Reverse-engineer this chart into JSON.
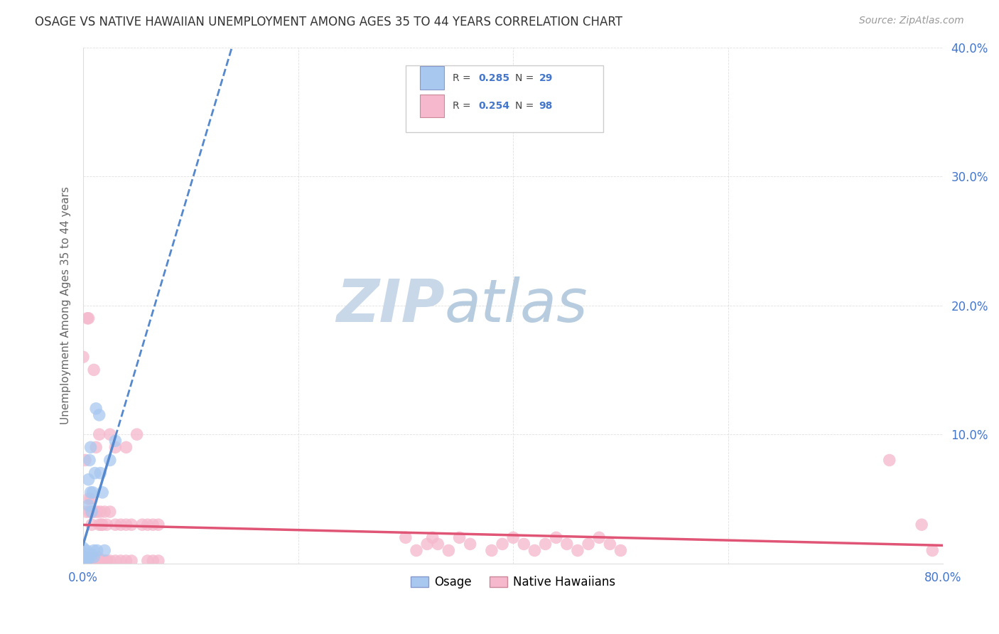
{
  "title": "OSAGE VS NATIVE HAWAIIAN UNEMPLOYMENT AMONG AGES 35 TO 44 YEARS CORRELATION CHART",
  "source": "Source: ZipAtlas.com",
  "ylabel": "Unemployment Among Ages 35 to 44 years",
  "xlim": [
    0.0,
    0.8
  ],
  "ylim": [
    0.0,
    0.4
  ],
  "xticks": [
    0.0,
    0.2,
    0.4,
    0.6,
    0.8
  ],
  "yticks": [
    0.0,
    0.1,
    0.2,
    0.3,
    0.4
  ],
  "xticklabels": [
    "0.0%",
    "",
    "",
    "",
    "80.0%"
  ],
  "yticklabels_right": [
    "",
    "10.0%",
    "20.0%",
    "30.0%",
    "40.0%"
  ],
  "osage_R": 0.285,
  "osage_N": 29,
  "native_R": 0.254,
  "native_N": 98,
  "osage_color": "#a8c8f0",
  "native_color": "#f5b8cc",
  "osage_line_color": "#5588cc",
  "native_line_color": "#e05575",
  "grid_color": "#cccccc",
  "title_color": "#333333",
  "tick_color": "#4477cc",
  "watermark_color": "#dde8f5",
  "osage_x": [
    0.0,
    0.0,
    0.0,
    0.0,
    0.002,
    0.002,
    0.003,
    0.003,
    0.004,
    0.005,
    0.005,
    0.006,
    0.006,
    0.007,
    0.007,
    0.008,
    0.008,
    0.009,
    0.01,
    0.01,
    0.011,
    0.012,
    0.013,
    0.015,
    0.016,
    0.018,
    0.02,
    0.025,
    0.03
  ],
  "osage_y": [
    0.002,
    0.005,
    0.008,
    0.012,
    0.0,
    0.004,
    0.006,
    0.01,
    0.003,
    0.045,
    0.065,
    0.005,
    0.08,
    0.055,
    0.09,
    0.007,
    0.04,
    0.055,
    0.005,
    0.01,
    0.07,
    0.12,
    0.01,
    0.115,
    0.07,
    0.055,
    0.01,
    0.08,
    0.095
  ],
  "native_x": [
    0.0,
    0.0,
    0.0,
    0.0,
    0.0,
    0.001,
    0.001,
    0.002,
    0.002,
    0.002,
    0.003,
    0.003,
    0.003,
    0.004,
    0.004,
    0.004,
    0.005,
    0.005,
    0.005,
    0.005,
    0.006,
    0.006,
    0.006,
    0.007,
    0.007,
    0.007,
    0.008,
    0.008,
    0.009,
    0.009,
    0.01,
    0.01,
    0.01,
    0.011,
    0.011,
    0.012,
    0.012,
    0.013,
    0.013,
    0.014,
    0.015,
    0.015,
    0.015,
    0.016,
    0.016,
    0.017,
    0.017,
    0.018,
    0.018,
    0.02,
    0.02,
    0.022,
    0.022,
    0.025,
    0.025,
    0.025,
    0.03,
    0.03,
    0.03,
    0.035,
    0.035,
    0.04,
    0.04,
    0.04,
    0.045,
    0.045,
    0.05,
    0.055,
    0.06,
    0.06,
    0.065,
    0.065,
    0.07,
    0.07,
    0.3,
    0.31,
    0.32,
    0.325,
    0.33,
    0.34,
    0.35,
    0.36,
    0.38,
    0.39,
    0.4,
    0.41,
    0.42,
    0.43,
    0.44,
    0.45,
    0.46,
    0.47,
    0.48,
    0.49,
    0.5,
    0.75,
    0.78,
    0.79
  ],
  "native_y": [
    0.001,
    0.003,
    0.005,
    0.007,
    0.16,
    0.002,
    0.004,
    0.001,
    0.003,
    0.08,
    0.002,
    0.004,
    0.04,
    0.001,
    0.003,
    0.19,
    0.001,
    0.003,
    0.05,
    0.19,
    0.002,
    0.004,
    0.04,
    0.002,
    0.004,
    0.05,
    0.002,
    0.03,
    0.002,
    0.04,
    0.002,
    0.004,
    0.15,
    0.002,
    0.04,
    0.002,
    0.09,
    0.002,
    0.04,
    0.005,
    0.002,
    0.03,
    0.1,
    0.002,
    0.04,
    0.002,
    0.03,
    0.002,
    0.03,
    0.002,
    0.04,
    0.002,
    0.03,
    0.002,
    0.04,
    0.1,
    0.002,
    0.03,
    0.09,
    0.002,
    0.03,
    0.002,
    0.03,
    0.09,
    0.002,
    0.03,
    0.1,
    0.03,
    0.002,
    0.03,
    0.002,
    0.03,
    0.002,
    0.03,
    0.02,
    0.01,
    0.015,
    0.02,
    0.015,
    0.01,
    0.02,
    0.015,
    0.01,
    0.015,
    0.02,
    0.015,
    0.01,
    0.015,
    0.02,
    0.015,
    0.01,
    0.015,
    0.02,
    0.015,
    0.01,
    0.08,
    0.03,
    0.01
  ]
}
